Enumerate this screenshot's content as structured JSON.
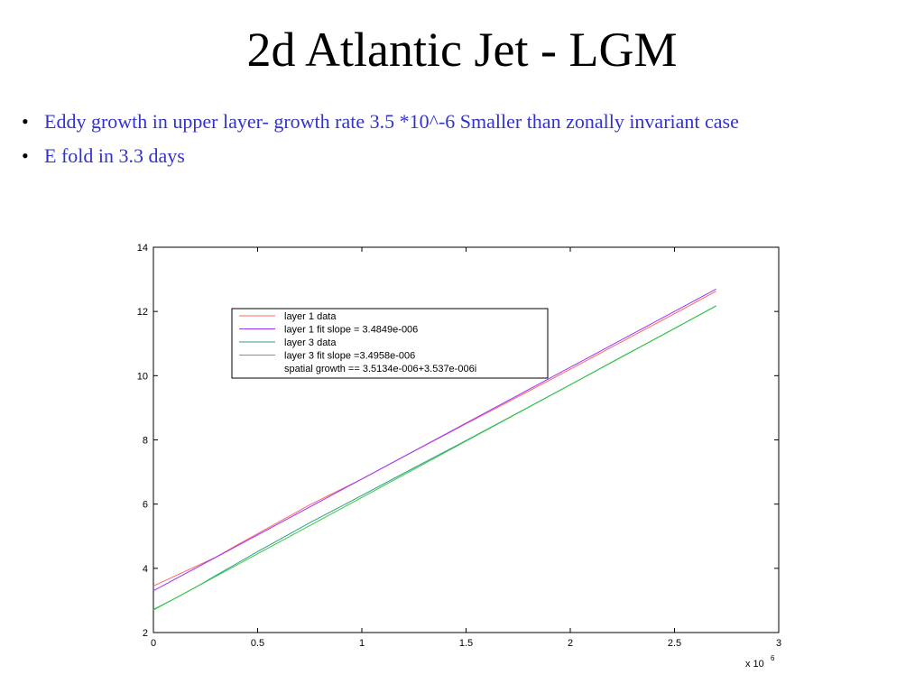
{
  "slide": {
    "title": "2d Atlantic Jet - LGM",
    "bullets": [
      "Eddy growth in upper layer- growth rate 3.5 *10^-6 Smaller than zonally invariant case",
      "E fold in 3.3 days"
    ],
    "bullet_symbol": "•",
    "text_color": "#3333cc"
  },
  "chart_data": {
    "type": "line",
    "xlim": [
      0,
      3
    ],
    "ylim": [
      2,
      14
    ],
    "x_ticks": [
      "0",
      "0.5",
      "1",
      "1.5",
      "2",
      "2.5",
      "3"
    ],
    "x_tick_values": [
      0,
      0.5,
      1,
      1.5,
      2,
      2.5,
      3
    ],
    "y_ticks": [
      "2",
      "4",
      "6",
      "8",
      "10",
      "12",
      "14"
    ],
    "y_tick_values": [
      2,
      4,
      6,
      8,
      10,
      12,
      14
    ],
    "x_multiplier_base": "x 10",
    "x_multiplier_exp": "6",
    "grid": false,
    "legend_position": "upper-left",
    "series": [
      {
        "name": "layer 1 data",
        "color": "#ff6666",
        "x": [
          0,
          0.1,
          0.2,
          0.3,
          0.4,
          0.5,
          0.75,
          1.0,
          1.25,
          1.5,
          1.75,
          2.0,
          2.25,
          2.5,
          2.7
        ],
        "y": [
          3.45,
          3.75,
          4.05,
          4.35,
          4.72,
          5.08,
          5.98,
          6.78,
          7.65,
          8.5,
          9.35,
          10.2,
          11.07,
          11.93,
          12.63
        ]
      },
      {
        "name": "layer 1 fit slope = 3.4849e-006",
        "color": "#9933ff",
        "x": [
          0,
          2.7
        ],
        "y": [
          3.3,
          12.7
        ]
      },
      {
        "name": "layer 3 data",
        "color": "#339999",
        "x": [
          0,
          0.1,
          0.2,
          0.3,
          0.4,
          0.5,
          0.75,
          1.0,
          1.25,
          1.5,
          1.75,
          2.0,
          2.25,
          2.5,
          2.7
        ],
        "y": [
          2.72,
          3.05,
          3.4,
          3.78,
          4.15,
          4.52,
          5.42,
          6.27,
          7.13,
          7.98,
          8.85,
          9.72,
          10.6,
          11.47,
          12.18
        ]
      },
      {
        "name": "layer 3 fit slope =3.4958e-006",
        "color": "#33cc33",
        "x": [
          0,
          2.7
        ],
        "y": [
          2.7,
          12.17
        ]
      }
    ],
    "legend_extra": "spatial growth == 3.5134e-006+3.537e-006i"
  }
}
